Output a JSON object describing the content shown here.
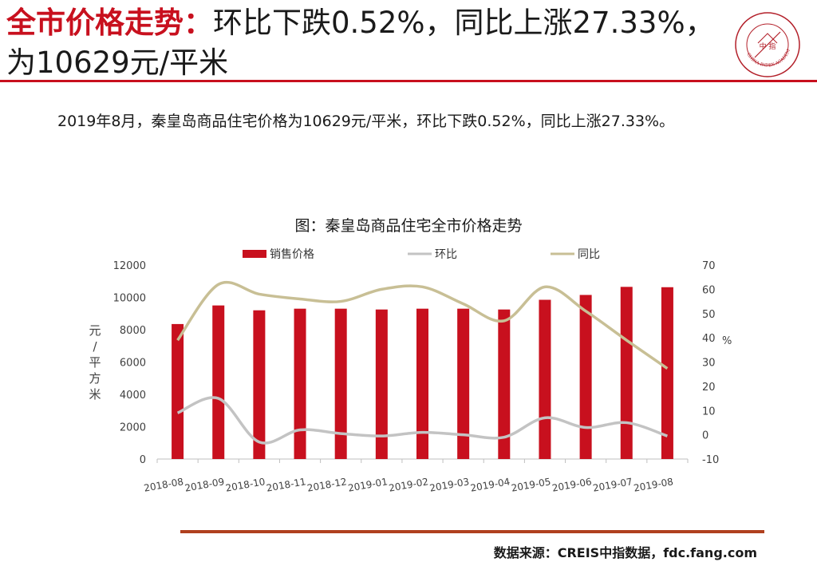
{
  "header": {
    "title_highlight": "全市价格走势：",
    "title_rest": "环比下跌0.52%，同比上涨27.33%，为10629元/平米",
    "logo_text": "中 指",
    "logo_ring_text": "CHINA INDEX ACADEMY"
  },
  "summary": "2019年8月，秦皇岛商品住宅价格为10629元/平米，环比下跌0.52%，同比上涨27.33%。",
  "chart_title": "图：秦皇岛商品住宅全市价格走势",
  "source": "数据来源：CREIS中指数据，fdc.fang.com",
  "colors": {
    "accent": "#c8101e",
    "bar": "#c8101e",
    "mom": "#c3c3c3",
    "yoy": "#c8bf95",
    "rule": "#b0401e"
  },
  "chart_data": {
    "type": "bar",
    "categories": [
      "2018-08",
      "2018-09",
      "2018-10",
      "2018-11",
      "2018-12",
      "2019-01",
      "2019-02",
      "2019-03",
      "2019-04",
      "2019-05",
      "2019-06",
      "2019-07",
      "2019-08"
    ],
    "series": [
      {
        "name": "销售价格",
        "type": "bar",
        "axis": "left",
        "values": [
          8350,
          9500,
          9200,
          9300,
          9300,
          9250,
          9300,
          9300,
          9250,
          9850,
          10150,
          10650,
          10629
        ]
      },
      {
        "name": "环比",
        "type": "line",
        "axis": "right",
        "values": [
          9,
          15,
          -3,
          2,
          0.5,
          -0.5,
          1,
          0,
          -1,
          7,
          3,
          5,
          -0.52
        ]
      },
      {
        "name": "同比",
        "type": "line",
        "axis": "right",
        "values": [
          39,
          62,
          58,
          56,
          55,
          60,
          61,
          54,
          47,
          61,
          51,
          39,
          27.33
        ]
      }
    ],
    "y_left": {
      "label": "元/平方米",
      "ylim": [
        0,
        12000
      ],
      "ticks": [
        0,
        2000,
        4000,
        6000,
        8000,
        10000,
        12000
      ]
    },
    "y_right": {
      "label": "%",
      "ylim": [
        -10,
        70
      ],
      "ticks": [
        -10,
        0,
        10,
        20,
        30,
        40,
        50,
        60,
        70
      ]
    },
    "legend_position": "top",
    "grid": false
  }
}
